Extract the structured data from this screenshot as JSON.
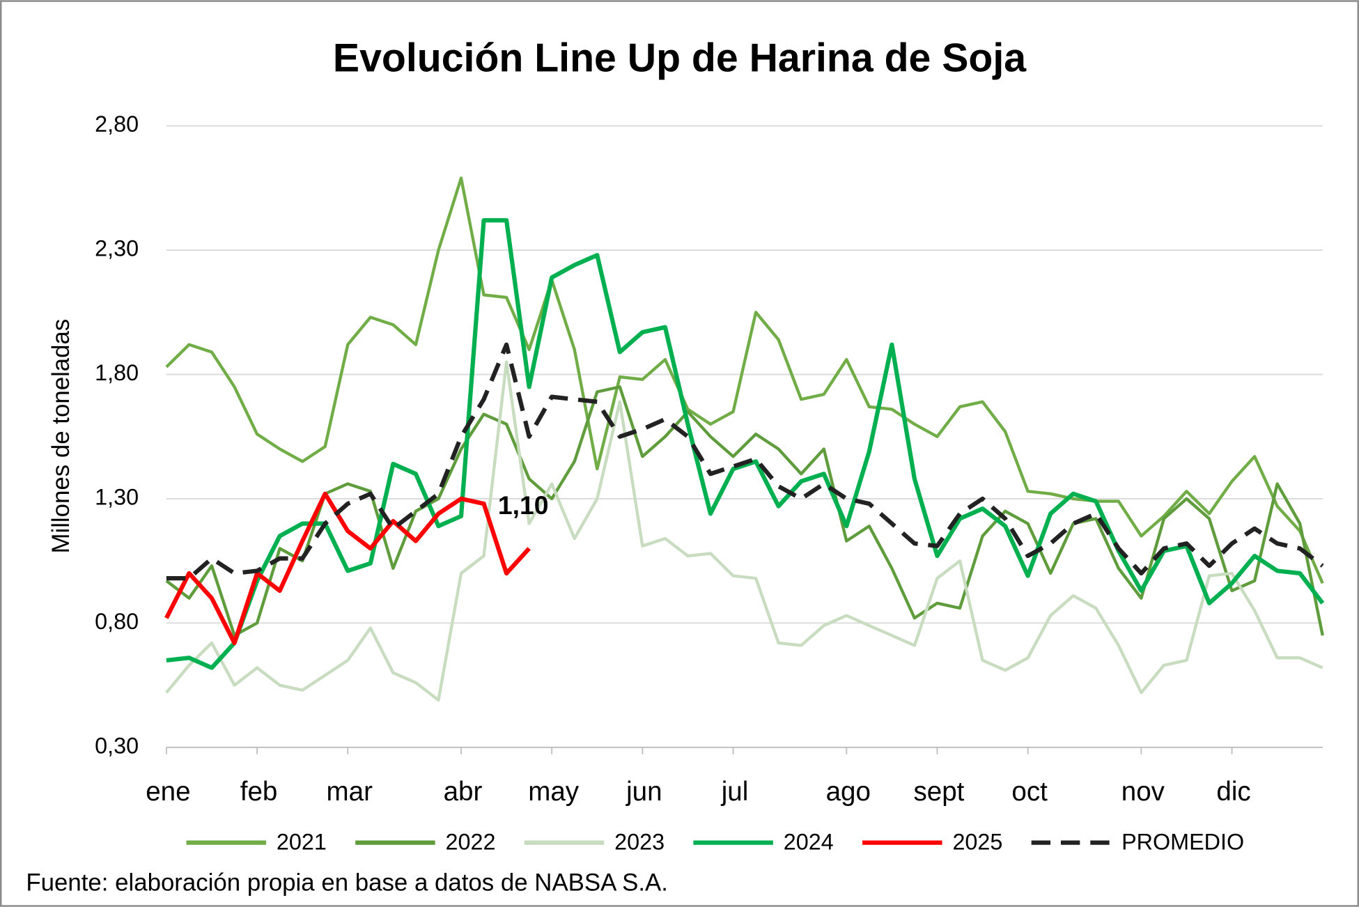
{
  "chart_data": {
    "type": "line",
    "title": "Evolución Line Up de Harina de Soja",
    "y_label": "Millones de toneladas",
    "source": "Fuente: elaboración propia en base a datos de NABSA S.A.",
    "annotation": "1,10",
    "categories": [
      "ene",
      null,
      null,
      null,
      "feb",
      null,
      null,
      null,
      "mar",
      null,
      null,
      null,
      null,
      "abr",
      null,
      null,
      null,
      "may",
      null,
      null,
      null,
      "jun",
      null,
      null,
      null,
      "jul",
      null,
      null,
      null,
      null,
      "ago",
      null,
      null,
      null,
      "sept",
      null,
      null,
      null,
      "oct",
      null,
      null,
      null,
      null,
      "nov",
      null,
      null,
      null,
      "dic",
      null,
      null,
      null,
      null
    ],
    "ylim": [
      0.3,
      2.8
    ],
    "yticks": [
      {
        "value": 0.3,
        "label": "0,30"
      },
      {
        "value": 0.8,
        "label": "0,80"
      },
      {
        "value": 1.3,
        "label": "1,30"
      },
      {
        "value": 1.8,
        "label": "1,80"
      },
      {
        "value": 2.3,
        "label": "2,30"
      },
      {
        "value": 2.8,
        "label": "2,80"
      }
    ],
    "grid": true,
    "legend": "bottom",
    "series": [
      {
        "name": "2021",
        "color": "#70ad47",
        "width": 3.5,
        "values": [
          1.83,
          1.92,
          1.89,
          1.75,
          1.56,
          1.5,
          1.45,
          1.51,
          1.92,
          2.03,
          2.0,
          1.92,
          2.3,
          2.59,
          2.12,
          2.11,
          1.9,
          2.18,
          1.9,
          1.42,
          1.79,
          1.78,
          1.86,
          1.66,
          1.6,
          1.65,
          2.05,
          1.94,
          1.7,
          1.72,
          1.86,
          1.67,
          1.66,
          1.6,
          1.55,
          1.67,
          1.69,
          1.57,
          1.33,
          1.32,
          1.3,
          1.29,
          1.29,
          1.15,
          1.23,
          1.33,
          1.24,
          1.37,
          1.47,
          1.27,
          1.17,
          0.96
        ]
      },
      {
        "name": "2022",
        "color": "#5e9c3c",
        "width": 3.5,
        "values": [
          0.97,
          0.9,
          1.03,
          0.75,
          0.8,
          1.1,
          1.05,
          1.32,
          1.36,
          1.33,
          1.02,
          1.25,
          1.3,
          1.5,
          1.64,
          1.6,
          1.38,
          1.3,
          1.45,
          1.73,
          1.75,
          1.47,
          1.55,
          1.65,
          1.55,
          1.47,
          1.56,
          1.5,
          1.4,
          1.5,
          1.13,
          1.19,
          1.02,
          0.82,
          0.88,
          0.86,
          1.15,
          1.25,
          1.2,
          1.0,
          1.2,
          1.22,
          1.02,
          0.9,
          1.22,
          1.3,
          1.22,
          0.93,
          0.97,
          1.36,
          1.2,
          0.75
        ]
      },
      {
        "name": "2023",
        "color": "#c8dcbf",
        "width": 3.5,
        "values": [
          0.52,
          0.63,
          0.72,
          0.55,
          0.62,
          0.55,
          0.53,
          0.59,
          0.65,
          0.78,
          0.6,
          0.56,
          0.49,
          1.0,
          1.07,
          1.85,
          1.2,
          1.36,
          1.14,
          1.3,
          1.69,
          1.11,
          1.14,
          1.07,
          1.08,
          0.99,
          0.98,
          0.72,
          0.71,
          0.79,
          0.83,
          0.79,
          0.75,
          0.71,
          0.98,
          1.05,
          0.65,
          0.61,
          0.66,
          0.83,
          0.91,
          0.86,
          0.71,
          0.52,
          0.63,
          0.65,
          0.99,
          1.0,
          0.85,
          0.66,
          0.66,
          0.62
        ]
      },
      {
        "name": "2024",
        "color": "#00b050",
        "width": 5,
        "values": [
          0.65,
          0.66,
          0.62,
          0.72,
          0.97,
          1.15,
          1.2,
          1.2,
          1.01,
          1.04,
          1.44,
          1.4,
          1.19,
          1.23,
          2.42,
          2.42,
          1.75,
          2.19,
          2.24,
          2.28,
          1.89,
          1.97,
          1.99,
          1.6,
          1.24,
          1.42,
          1.45,
          1.27,
          1.37,
          1.4,
          1.19,
          1.49,
          1.92,
          1.38,
          1.07,
          1.22,
          1.26,
          1.19,
          0.99,
          1.24,
          1.32,
          1.29,
          1.09,
          0.93,
          1.09,
          1.11,
          0.88,
          0.96,
          1.07,
          1.01,
          1.0,
          0.88
        ]
      },
      {
        "name": "2025",
        "color": "#ff0000",
        "width": 5,
        "values": [
          0.82,
          1.0,
          0.9,
          0.72,
          1.0,
          0.93,
          1.13,
          1.32,
          1.17,
          1.1,
          1.21,
          1.13,
          1.24,
          1.3,
          1.28,
          1.0,
          1.1,
          null,
          null,
          null,
          null,
          null,
          null,
          null,
          null,
          null,
          null,
          null,
          null,
          null,
          null,
          null,
          null,
          null,
          null,
          null,
          null,
          null,
          null,
          null,
          null,
          null,
          null,
          null,
          null,
          null,
          null,
          null,
          null,
          null,
          null,
          null
        ]
      },
      {
        "name": "PROMEDIO",
        "color": "#222222",
        "width": 5,
        "dashed": true,
        "values": [
          0.98,
          0.98,
          1.06,
          1.0,
          1.01,
          1.06,
          1.06,
          1.2,
          1.28,
          1.32,
          1.18,
          1.25,
          1.32,
          1.55,
          1.7,
          1.92,
          1.55,
          1.71,
          1.7,
          1.69,
          1.55,
          1.58,
          1.62,
          1.55,
          1.4,
          1.43,
          1.46,
          1.35,
          1.3,
          1.36,
          1.3,
          1.28,
          1.2,
          1.12,
          1.11,
          1.24,
          1.3,
          1.22,
          1.07,
          1.12,
          1.2,
          1.24,
          1.1,
          1.0,
          1.1,
          1.12,
          1.03,
          1.12,
          1.18,
          1.12,
          1.1,
          1.03
        ]
      }
    ]
  }
}
